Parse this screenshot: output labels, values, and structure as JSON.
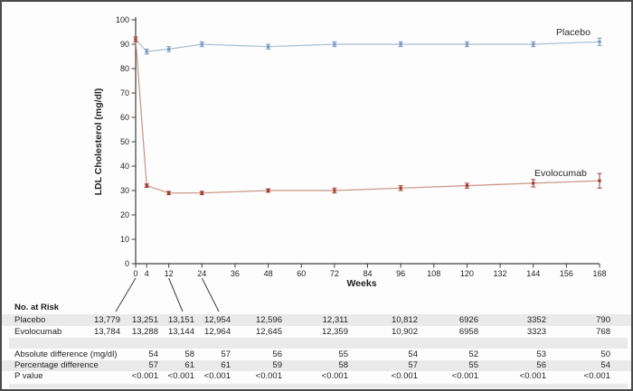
{
  "figure": {
    "xlabel": "Weeks",
    "ylabel": "LDL Cholesterol (mg/dl)"
  },
  "chart_data": {
    "type": "line",
    "title": "",
    "xlabel": "Weeks",
    "ylabel": "LDL Cholesterol (mg/dl)",
    "xlim": [
      0,
      168
    ],
    "ylim": [
      0,
      100
    ],
    "xticks": [
      0,
      4,
      12,
      24,
      36,
      48,
      60,
      72,
      84,
      96,
      108,
      120,
      132,
      144,
      156,
      168
    ],
    "yticks": [
      0,
      10,
      20,
      30,
      40,
      50,
      60,
      70,
      80,
      90,
      100
    ],
    "grid": false,
    "legend_position": "inline-right",
    "x": [
      0,
      4,
      12,
      24,
      48,
      72,
      96,
      120,
      144,
      168
    ],
    "series": [
      {
        "name": "Placebo",
        "values": [
          92,
          87,
          88,
          90,
          89,
          90,
          90,
          90,
          90,
          91
        ],
        "err": [
          1,
          1,
          1,
          1,
          1,
          1,
          1,
          1,
          1,
          1.5
        ],
        "line_color": "#a9bcd4",
        "marker_color": "#7b96bd"
      },
      {
        "name": "Evolocumab",
        "values": [
          92,
          32,
          29,
          29,
          30,
          30,
          31,
          32,
          33,
          34
        ],
        "err": [
          1,
          0.7,
          0.7,
          0.7,
          0.7,
          1,
          1,
          1,
          1.5,
          3
        ],
        "line_color": "#c99382",
        "marker_color": "#a33e33"
      }
    ]
  },
  "table": {
    "header": "No. at Risk",
    "risk_rows": [
      {
        "label": "Placebo",
        "values": [
          "13,779",
          "13,251",
          "13,151",
          "12,954",
          "12,596",
          "12,311",
          "10,812",
          "6926",
          "3352",
          "790"
        ]
      },
      {
        "label": "Evolocumab",
        "values": [
          "13,784",
          "13,288",
          "13,144",
          "12,964",
          "12,645",
          "12,359",
          "10,902",
          "6958",
          "3323",
          "768"
        ]
      }
    ],
    "stat_rows": [
      {
        "label": "Absolute difference (mg/dl)",
        "values": [
          "54",
          "58",
          "57",
          "56",
          "55",
          "54",
          "52",
          "53",
          "50"
        ]
      },
      {
        "label": "Percentage difference",
        "values": [
          "57",
          "61",
          "61",
          "59",
          "58",
          "57",
          "55",
          "56",
          "54"
        ]
      },
      {
        "label": "P value",
        "values": [
          "<0.001",
          "<0.001",
          "<0.001",
          "<0.001",
          "<0.001",
          "<0.001",
          "<0.001",
          "<0.001",
          "<0.001"
        ]
      }
    ]
  },
  "colors": {
    "axis": "#3f3f3f",
    "text": "#1f1f1f",
    "row_shade": "#eaeaea",
    "placebo_line": "#a9bcd4",
    "placebo_marker": "#7b96bd",
    "evolocumab_line": "#c99382",
    "evolocumab_marker": "#a33e33"
  }
}
